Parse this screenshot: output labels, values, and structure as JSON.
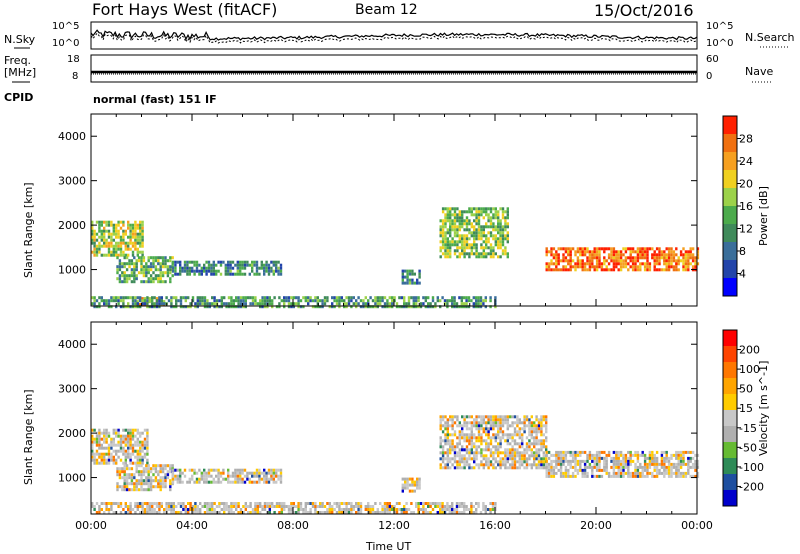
{
  "header": {
    "station": "Fort Hays West (fitACF)",
    "beam": "Beam 12",
    "date": "15/Oct/2016",
    "mode": "normal (fast) 151 IF"
  },
  "panels": {
    "nsky": {
      "label": "N.Sky",
      "ticks": [
        "10^5",
        "10^0"
      ]
    },
    "nsearch": {
      "label": "N.Search",
      "ticks": [
        "10^5",
        "10^0"
      ]
    },
    "freq": {
      "label1": "Freq.",
      "label2": "[MHz]",
      "ticks": [
        "18",
        "8"
      ]
    },
    "nave": {
      "label": "Nave",
      "ticks": [
        "60",
        "0"
      ]
    },
    "cpid": {
      "label": "CPID"
    }
  },
  "colors": {
    "power": [
      "#0000ff",
      "#2244aa",
      "#3a6e9a",
      "#3f8a5a",
      "#4cab4c",
      "#9cd24a",
      "#f0d020",
      "#f6a020",
      "#f07010",
      "#ff2000"
    ],
    "velocity": [
      "#ff0000",
      "#ff4400",
      "#ff7700",
      "#ffa500",
      "#ffcc00",
      "#c8c8c8",
      "#b0b0b0",
      "#66bb33",
      "#2e8b57",
      "#1e4fa0",
      "#0000cc"
    ]
  },
  "chart_data": [
    {
      "type": "heatmap",
      "name": "power",
      "xlabel": "",
      "ylabel": "Slant Range [km]",
      "xlim": [
        0,
        24
      ],
      "ylim": [
        180,
        4500
      ],
      "yticks": [
        1000,
        2000,
        3000,
        4000
      ],
      "colorbar": {
        "label": "Power [dB]",
        "ticks": [
          4,
          8,
          12,
          16,
          20,
          24,
          28
        ],
        "range": [
          0,
          32
        ]
      },
      "regions": [
        {
          "x": [
            0,
            2.0
          ],
          "y": [
            1300,
            2100
          ],
          "level": 0.55
        },
        {
          "x": [
            1.0,
            3.2
          ],
          "y": [
            700,
            1300
          ],
          "level": 0.45
        },
        {
          "x": [
            3.2,
            7.5
          ],
          "y": [
            900,
            1200
          ],
          "level": 0.3
        },
        {
          "x": [
            1.8,
            2.9
          ],
          "y": [
            200,
            380
          ],
          "level": 0.75
        },
        {
          "x": [
            0,
            16
          ],
          "y": [
            180,
            400
          ],
          "level": 0.35
        },
        {
          "x": [
            13.8,
            16.5
          ],
          "y": [
            1300,
            2400
          ],
          "level": 0.5
        },
        {
          "x": [
            18.0,
            24
          ],
          "y": [
            1000,
            1500
          ],
          "level": 0.9
        },
        {
          "x": [
            12.3,
            13.0
          ],
          "y": [
            700,
            1000
          ],
          "level": 0.3
        }
      ]
    },
    {
      "type": "heatmap",
      "name": "velocity",
      "xlabel": "Time UT",
      "ylabel": "Slant Range [km]",
      "xlim": [
        0,
        24
      ],
      "ylim": [
        180,
        4500
      ],
      "yticks": [
        1000,
        2000,
        3000,
        4000
      ],
      "xticks": [
        "00:00",
        "04:00",
        "08:00",
        "12:00",
        "16:00",
        "20:00",
        "00:00"
      ],
      "colorbar": {
        "label": "Velocity [m s^-1]",
        "ticks": [
          200,
          100,
          50,
          15,
          -15,
          -50,
          -100,
          -200
        ]
      },
      "regions": [
        {
          "x": [
            0,
            2.2
          ],
          "y": [
            1300,
            2100
          ],
          "level": 0.5
        },
        {
          "x": [
            1.0,
            3.2
          ],
          "y": [
            700,
            1300
          ],
          "level": 0.35
        },
        {
          "x": [
            3.2,
            7.5
          ],
          "y": [
            900,
            1200
          ],
          "level": 0.3
        },
        {
          "x": [
            0,
            16
          ],
          "y": [
            180,
            450
          ],
          "level": 0.35
        },
        {
          "x": [
            13.8,
            18.0
          ],
          "y": [
            1200,
            2400
          ],
          "level": 0.5
        },
        {
          "x": [
            18.0,
            24
          ],
          "y": [
            1000,
            1600
          ],
          "level": 0.5
        },
        {
          "x": [
            12.3,
            13.0
          ],
          "y": [
            700,
            1000
          ],
          "level": 0.25
        }
      ]
    }
  ]
}
